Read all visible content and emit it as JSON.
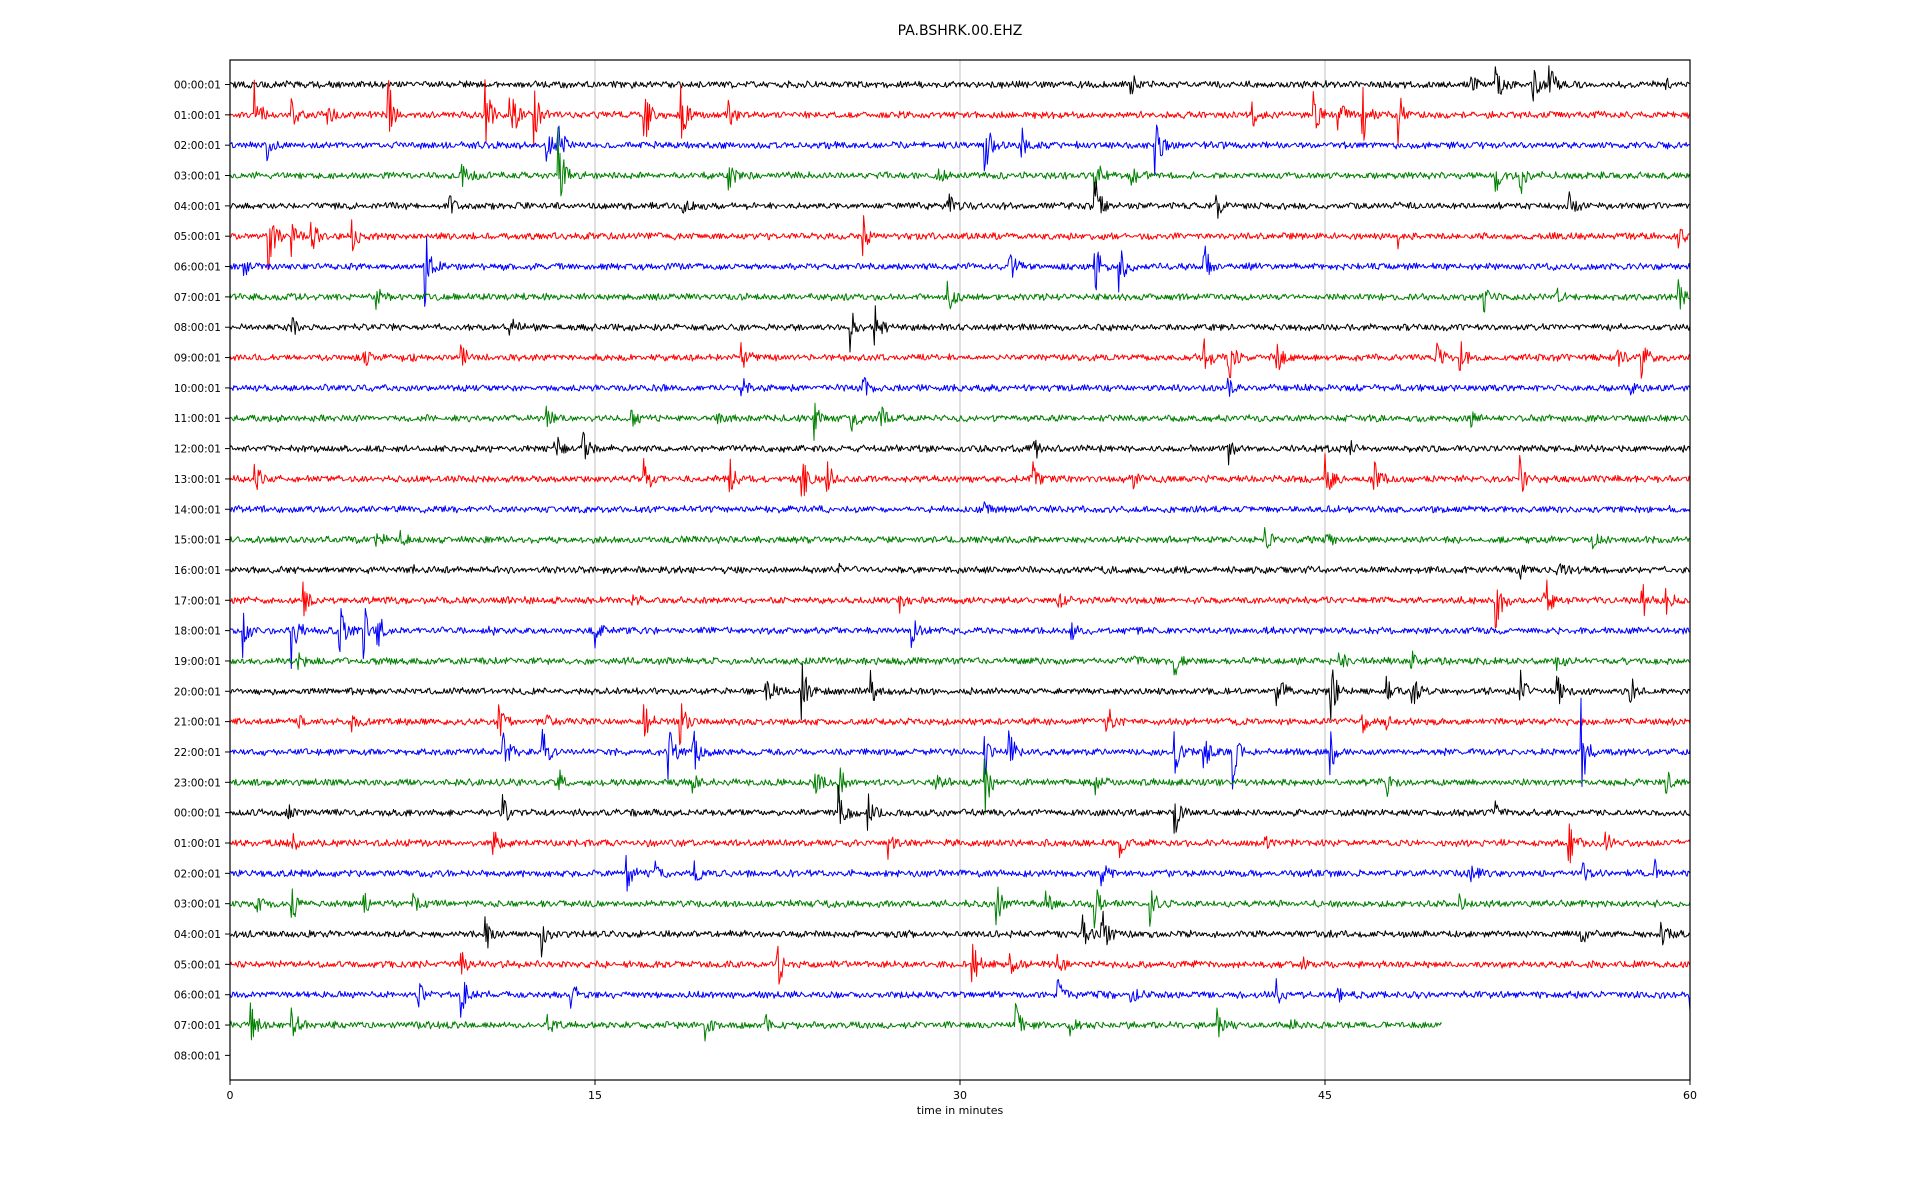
{
  "chart_data": {
    "type": "line",
    "title": "PA.BSHRK.00.EHZ",
    "xlabel": "time in minutes",
    "ylabel": "",
    "xlim": [
      0,
      60
    ],
    "xticks": [
      "0",
      "15",
      "30",
      "45",
      "60"
    ],
    "xtick_values": [
      0,
      15,
      30,
      45,
      60
    ],
    "grid": "vertical at x ticks",
    "colors": [
      "#000000",
      "#ff0000",
      "#0000ff",
      "#008000"
    ],
    "noise_level": 0.11,
    "rows": [
      {
        "label": "00:00:01",
        "events": [
          [
            37,
            0.6
          ],
          [
            51,
            0.3
          ],
          [
            52,
            1.0
          ],
          [
            53.5,
            0.8
          ],
          [
            54.2,
            1.0
          ],
          [
            59,
            0.3
          ]
        ]
      },
      {
        "label": "01:00:01",
        "events": [
          [
            1,
            1.4
          ],
          [
            2.5,
            0.6
          ],
          [
            4,
            0.5
          ],
          [
            6.5,
            1.4
          ],
          [
            10.5,
            1.5
          ],
          [
            11.5,
            1.6
          ],
          [
            12.5,
            1.0
          ],
          [
            17,
            1.4
          ],
          [
            18.5,
            1.4
          ],
          [
            20.5,
            0.5
          ],
          [
            42,
            0.5
          ],
          [
            44.5,
            1.2
          ],
          [
            45.5,
            1.6
          ],
          [
            46.5,
            1.6
          ],
          [
            48,
            1.0
          ]
        ]
      },
      {
        "label": "02:00:01",
        "events": [
          [
            1.5,
            0.7
          ],
          [
            13,
            0.6
          ],
          [
            13.5,
            0.8
          ],
          [
            31,
            1.3
          ],
          [
            32.5,
            1.0
          ],
          [
            38,
            1.5
          ]
        ]
      },
      {
        "label": "03:00:01",
        "events": [
          [
            9.5,
            0.5
          ],
          [
            13.5,
            1.8
          ],
          [
            20.5,
            0.5
          ],
          [
            29,
            0.6
          ],
          [
            35.5,
            1.2
          ],
          [
            37,
            0.6
          ],
          [
            52,
            0.8
          ],
          [
            53,
            0.9
          ]
        ]
      },
      {
        "label": "04:00:01",
        "events": [
          [
            9,
            0.4
          ],
          [
            18.5,
            0.5
          ],
          [
            29.5,
            0.6
          ],
          [
            35.5,
            1.5
          ],
          [
            40.5,
            0.7
          ],
          [
            55,
            0.5
          ]
        ]
      },
      {
        "label": "05:00:01",
        "events": [
          [
            1.5,
            2.0
          ],
          [
            2.5,
            0.8
          ],
          [
            3.3,
            0.9
          ],
          [
            5,
            0.8
          ],
          [
            26,
            0.8
          ],
          [
            48,
            0.5
          ],
          [
            59.5,
            0.5
          ]
        ]
      },
      {
        "label": "06:00:01",
        "events": [
          [
            0.5,
            0.5
          ],
          [
            8,
            1.5
          ],
          [
            32,
            1.0
          ],
          [
            35.5,
            1.5
          ],
          [
            36.5,
            1.2
          ],
          [
            40,
            1.0
          ]
        ]
      },
      {
        "label": "07:00:01",
        "events": [
          [
            6,
            0.4
          ],
          [
            29.5,
            0.6
          ],
          [
            51.5,
            0.7
          ],
          [
            54.5,
            0.4
          ],
          [
            59.5,
            0.6
          ]
        ]
      },
      {
        "label": "08:00:01",
        "events": [
          [
            2.5,
            0.4
          ],
          [
            11.5,
            0.6
          ],
          [
            25.5,
            1.0
          ],
          [
            26.5,
            0.9
          ]
        ]
      },
      {
        "label": "09:00:01",
        "events": [
          [
            5.5,
            0.4
          ],
          [
            7,
            0.4
          ],
          [
            9.5,
            0.5
          ],
          [
            21,
            0.6
          ],
          [
            40,
            0.8
          ],
          [
            41,
            1.3
          ],
          [
            43,
            0.8
          ],
          [
            49.5,
            0.8
          ],
          [
            50.5,
            0.9
          ],
          [
            57,
            0.6
          ],
          [
            58,
            1.0
          ]
        ]
      },
      {
        "label": "10:00:01",
        "events": [
          [
            21,
            0.7
          ],
          [
            26,
            0.6
          ],
          [
            41,
            0.4
          ],
          [
            57.5,
            0.4
          ]
        ]
      },
      {
        "label": "11:00:01",
        "events": [
          [
            13,
            0.5
          ],
          [
            16.5,
            0.3
          ],
          [
            20,
            0.3
          ],
          [
            24,
            0.8
          ],
          [
            25.5,
            0.7
          ],
          [
            26.7,
            0.6
          ],
          [
            51,
            0.3
          ]
        ]
      },
      {
        "label": "12:00:01",
        "events": [
          [
            13.3,
            0.9
          ],
          [
            14.5,
            0.6
          ],
          [
            33,
            0.6
          ],
          [
            41,
            0.8
          ],
          [
            46,
            0.4
          ]
        ]
      },
      {
        "label": "13:00:01",
        "events": [
          [
            1,
            0.8
          ],
          [
            17,
            0.8
          ],
          [
            20.5,
            1.0
          ],
          [
            23.5,
            1.0
          ],
          [
            24.5,
            1.0
          ],
          [
            33,
            0.6
          ],
          [
            37,
            0.6
          ],
          [
            45,
            1.1
          ],
          [
            47,
            0.9
          ],
          [
            53,
            0.8
          ]
        ]
      },
      {
        "label": "14:00:01",
        "events": [
          [
            31,
            0.4
          ]
        ]
      },
      {
        "label": "15:00:01",
        "events": [
          [
            6,
            0.4
          ],
          [
            7,
            0.3
          ],
          [
            42.5,
            0.5
          ],
          [
            45,
            0.4
          ],
          [
            56,
            0.3
          ]
        ]
      },
      {
        "label": "16:00:01",
        "events": [
          [
            7.5,
            0.2
          ],
          [
            25,
            0.3
          ],
          [
            53,
            0.3
          ],
          [
            54.5,
            0.4
          ]
        ]
      },
      {
        "label": "17:00:01",
        "events": [
          [
            3,
            0.7
          ],
          [
            16.5,
            0.3
          ],
          [
            27.5,
            0.4
          ],
          [
            34,
            0.4
          ],
          [
            52,
            1.5
          ],
          [
            54,
            1.5
          ],
          [
            58,
            1.2
          ],
          [
            59,
            0.5
          ]
        ]
      },
      {
        "label": "18:00:01",
        "events": [
          [
            0.5,
            1.0
          ],
          [
            2.5,
            1.5
          ],
          [
            4.5,
            1.2
          ],
          [
            5.5,
            1.0
          ],
          [
            6,
            1.0
          ],
          [
            10.5,
            0.4
          ],
          [
            15,
            0.6
          ],
          [
            28,
            0.7
          ],
          [
            34.5,
            0.5
          ]
        ]
      },
      {
        "label": "19:00:01",
        "events": [
          [
            2.8,
            0.5
          ],
          [
            37,
            0.4
          ],
          [
            38.8,
            0.7
          ],
          [
            45.5,
            0.6
          ],
          [
            48.5,
            0.5
          ],
          [
            54.5,
            0.4
          ]
        ]
      },
      {
        "label": "20:00:01",
        "events": [
          [
            22,
            1.2
          ],
          [
            23.5,
            1.2
          ],
          [
            26.3,
            1.0
          ],
          [
            43,
            1.0
          ],
          [
            45.2,
            1.4
          ],
          [
            47.5,
            0.7
          ],
          [
            48.5,
            1.1
          ],
          [
            53,
            0.9
          ],
          [
            54.5,
            0.8
          ],
          [
            57.5,
            0.7
          ]
        ]
      },
      {
        "label": "21:00:01",
        "events": [
          [
            2.8,
            0.5
          ],
          [
            5,
            0.4
          ],
          [
            11,
            0.8
          ],
          [
            13,
            0.4
          ],
          [
            17,
            0.9
          ],
          [
            18.5,
            0.9
          ],
          [
            36,
            0.9
          ],
          [
            46.5,
            0.5
          ],
          [
            47.5,
            0.4
          ]
        ]
      },
      {
        "label": "22:00:01",
        "events": [
          [
            11.2,
            1.2
          ],
          [
            12.8,
            1.1
          ],
          [
            18,
            1.2
          ],
          [
            19,
            1.3
          ],
          [
            31,
            1.2
          ],
          [
            32,
            0.9
          ],
          [
            38.8,
            1.3
          ],
          [
            40,
            1.0
          ],
          [
            41.2,
            1.3
          ],
          [
            45.2,
            0.8
          ],
          [
            55.5,
            2.5
          ]
        ]
      },
      {
        "label": "23:00:01",
        "events": [
          [
            13.5,
            0.6
          ],
          [
            19,
            0.5
          ],
          [
            24,
            0.8
          ],
          [
            25,
            0.8
          ],
          [
            29,
            0.6
          ],
          [
            31,
            1.5
          ],
          [
            35.5,
            0.6
          ],
          [
            47.5,
            0.6
          ],
          [
            59,
            0.5
          ]
        ]
      },
      {
        "label": "00:00:01",
        "events": [
          [
            2.3,
            0.4
          ],
          [
            11.2,
            0.6
          ],
          [
            25,
            1.0
          ],
          [
            26.2,
            1.0
          ],
          [
            38.8,
            1.0
          ],
          [
            52,
            0.3
          ]
        ]
      },
      {
        "label": "01:00:01",
        "events": [
          [
            2.5,
            0.5
          ],
          [
            10.8,
            0.7
          ],
          [
            27,
            0.6
          ],
          [
            36.5,
            0.6
          ],
          [
            42.5,
            0.4
          ],
          [
            55,
            1.0
          ],
          [
            56.5,
            0.5
          ]
        ]
      },
      {
        "label": "02:00:01",
        "events": [
          [
            16.3,
            0.7
          ],
          [
            17.5,
            0.4
          ],
          [
            19,
            0.7
          ],
          [
            35.8,
            0.5
          ],
          [
            51,
            0.8
          ],
          [
            55.5,
            1.0
          ],
          [
            58.5,
            0.6
          ]
        ]
      },
      {
        "label": "03:00:01",
        "events": [
          [
            1,
            0.6
          ],
          [
            2.5,
            1.0
          ],
          [
            5.5,
            0.4
          ],
          [
            7.5,
            0.5
          ],
          [
            31.5,
            0.8
          ],
          [
            33.5,
            0.5
          ],
          [
            35.5,
            0.9
          ],
          [
            37.8,
            0.8
          ],
          [
            50.5,
            0.3
          ]
        ]
      },
      {
        "label": "04:00:01",
        "events": [
          [
            10.5,
            0.8
          ],
          [
            12.8,
            0.7
          ],
          [
            35,
            0.8
          ],
          [
            35.8,
            1.2
          ],
          [
            55.5,
            0.7
          ],
          [
            58.8,
            0.5
          ]
        ]
      },
      {
        "label": "05:00:01",
        "events": [
          [
            9.5,
            0.6
          ],
          [
            22.5,
            1.0
          ],
          [
            30.5,
            1.0
          ],
          [
            32,
            0.6
          ],
          [
            34,
            0.5
          ],
          [
            44,
            0.3
          ]
        ]
      },
      {
        "label": "06:00:01",
        "events": [
          [
            7.7,
            0.6
          ],
          [
            9.5,
            0.8
          ],
          [
            14,
            0.6
          ],
          [
            34,
            0.7
          ],
          [
            37,
            0.5
          ],
          [
            43,
            0.5
          ],
          [
            45.5,
            0.5
          ],
          [
            60,
            0.5
          ]
        ]
      },
      {
        "label": "07:00:01",
        "end_minute": 49.8,
        "events": [
          [
            0.8,
            1.4
          ],
          [
            2.5,
            1.0
          ],
          [
            13,
            0.5
          ],
          [
            19.5,
            0.5
          ],
          [
            22,
            0.4
          ],
          [
            32.3,
            0.7
          ],
          [
            34.5,
            0.4
          ],
          [
            40.5,
            0.7
          ],
          [
            43.5,
            0.3
          ]
        ]
      },
      {
        "label": "08:00:01",
        "end_minute": 0,
        "events": []
      }
    ]
  }
}
